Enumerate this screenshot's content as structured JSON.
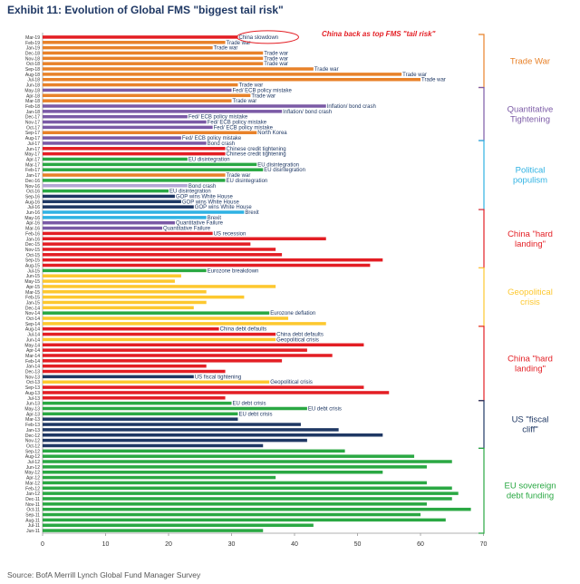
{
  "title": "Exhibit 11: Evolution of Global FMS \"biggest tail risk\"",
  "subtitle": "China back as top FMS \"tail risk\"",
  "source": "Source: BofA Merrill Lynch Global Fund Manager Survey",
  "colors": {
    "trade": "#e8822a",
    "qt": "#7b5aa6",
    "pop": "#2fb2e3",
    "china": "#e31e24",
    "geo": "#fdc82f",
    "fiscal": "#1f3864",
    "eu": "#2aa843"
  },
  "chart_data": {
    "type": "bar",
    "orientation": "horizontal",
    "xlim": [
      0,
      70
    ],
    "xticks": [
      0,
      10,
      20,
      30,
      40,
      50,
      60,
      70
    ],
    "grid": false,
    "groups": [
      {
        "label": "Trade War",
        "color": "#e8822a",
        "from": "Mar-19",
        "to": "Jun-18"
      },
      {
        "label": "Quantitative Tightening",
        "color": "#7b5aa6",
        "from": "May-18",
        "to": "Aug-17"
      },
      {
        "label": "Political populism",
        "color": "#2fb2e3",
        "from": "Jul-17",
        "to": "Jul-16"
      },
      {
        "label": "China \"hard landing\"",
        "color": "#e31e24",
        "from": "Jun-16",
        "to": "Aug-15"
      },
      {
        "label": "Geopolitical crisis",
        "color": "#fdc82f",
        "from": "Jul-15",
        "to": "Sep-14"
      },
      {
        "label": "China \"hard landing\"",
        "color": "#e31e24",
        "from": "Aug-14",
        "to": "Jul-13"
      },
      {
        "label": "US \"fiscal cliff\"",
        "color": "#1f3864",
        "from": "Jun-13",
        "to": "Oct-12"
      },
      {
        "label": "EU sovereign debt funding",
        "color": "#2aa843",
        "from": "Sep-12",
        "to": "Jun-11"
      }
    ],
    "bars": [
      {
        "date": "Mar-19",
        "value": 31,
        "color": "#e31e24",
        "label": "China slowdown"
      },
      {
        "date": "Feb-19",
        "value": 29,
        "color": "#e8822a",
        "label": "Trade war"
      },
      {
        "date": "Jan-19",
        "value": 27,
        "color": "#e8822a",
        "label": "Trade war"
      },
      {
        "date": "Dec-18",
        "value": 35,
        "color": "#e8822a",
        "label": "Trade war"
      },
      {
        "date": "Nov-18",
        "value": 35,
        "color": "#e8822a",
        "label": "Trade war"
      },
      {
        "date": "Oct-18",
        "value": 35,
        "color": "#e8822a",
        "label": "Trade war"
      },
      {
        "date": "Sep-18",
        "value": 43,
        "color": "#e8822a",
        "label": "Trade war"
      },
      {
        "date": "Aug-18",
        "value": 57,
        "color": "#e8822a",
        "label": "Trade war"
      },
      {
        "date": "Jul-18",
        "value": 60,
        "color": "#e8822a",
        "label": "Trade war"
      },
      {
        "date": "Jun-18",
        "value": 31,
        "color": "#e8822a",
        "label": "Trade war"
      },
      {
        "date": "May-18",
        "value": 30,
        "color": "#7b5aa6",
        "label": "Fed/ ECB policy mistake"
      },
      {
        "date": "Apr-18",
        "value": 33,
        "color": "#e8822a",
        "label": "Trade war"
      },
      {
        "date": "Mar-18",
        "value": 30,
        "color": "#e8822a",
        "label": "Trade war"
      },
      {
        "date": "Feb-18",
        "value": 45,
        "color": "#7b5aa6",
        "label": "Inflation/ bond crash"
      },
      {
        "date": "Jan-18",
        "value": 38,
        "color": "#7b5aa6",
        "label": "Inflation/ bond crash"
      },
      {
        "date": "Dec-17",
        "value": 23,
        "color": "#7b5aa6",
        "label": "Fed/ ECB policy mistake"
      },
      {
        "date": "Nov-17",
        "value": 26,
        "color": "#7b5aa6",
        "label": "Fed/ ECB policy mistake"
      },
      {
        "date": "Oct-17",
        "value": 27,
        "color": "#7b5aa6",
        "label": "Fed/ ECB policy mistake"
      },
      {
        "date": "Sep-17",
        "value": 34,
        "color": "#e8822a",
        "label": "North Korea"
      },
      {
        "date": "Aug-17",
        "value": 22,
        "color": "#7b5aa6",
        "label": "Fed/ ECB policy mistake"
      },
      {
        "date": "Jul-17",
        "value": 26,
        "color": "#7b5aa6",
        "label": "Bond crash"
      },
      {
        "date": "Jun-17",
        "value": 29,
        "color": "#e31e24",
        "label": "Chinese credit tightening"
      },
      {
        "date": "May-17",
        "value": 29,
        "color": "#e31e24",
        "label": "Chinese credit tightening"
      },
      {
        "date": "Apr-17",
        "value": 23,
        "color": "#2aa843",
        "label": "EU disintegration"
      },
      {
        "date": "Mar-17",
        "value": 34,
        "color": "#2aa843",
        "label": "EU disintegration"
      },
      {
        "date": "Feb-17",
        "value": 35,
        "color": "#2aa843",
        "label": "EU disintegration"
      },
      {
        "date": "Jan-17",
        "value": 29,
        "color": "#e8822a",
        "label": "Trade war"
      },
      {
        "date": "Dec-16",
        "value": 29,
        "color": "#2aa843",
        "label": "EU disintegration"
      },
      {
        "date": "Nov-16",
        "value": 23,
        "color": "#b4a7d6",
        "label": "Bond crash"
      },
      {
        "date": "Oct-16",
        "value": 20,
        "color": "#2aa843",
        "label": "EU disintegration"
      },
      {
        "date": "Sep-16",
        "value": 21,
        "color": "#1f3864",
        "label": "GOP wins White House"
      },
      {
        "date": "Aug-16",
        "value": 22,
        "color": "#1f3864",
        "label": "GOP wins White House"
      },
      {
        "date": "Jul-16",
        "value": 24,
        "color": "#1f3864",
        "label": "GOP wins White House"
      },
      {
        "date": "Jun-16",
        "value": 32,
        "color": "#2fb2e3",
        "label": "Brexit"
      },
      {
        "date": "May-16",
        "value": 26,
        "color": "#2fb2e3",
        "label": "Brexit"
      },
      {
        "date": "Apr-16",
        "value": 21,
        "color": "#7b5aa6",
        "label": "Quantitative Failure"
      },
      {
        "date": "Mar-16",
        "value": 19,
        "color": "#7b5aa6",
        "label": "Quantitative Failure"
      },
      {
        "date": "Feb-16",
        "value": 27,
        "color": "#e31e24",
        "label": "US recession"
      },
      {
        "date": "Jan-16",
        "value": 45,
        "color": "#e31e24",
        "label": ""
      },
      {
        "date": "Dec-15",
        "value": 33,
        "color": "#e31e24",
        "label": ""
      },
      {
        "date": "Nov-15",
        "value": 37,
        "color": "#e31e24",
        "label": ""
      },
      {
        "date": "Oct-15",
        "value": 38,
        "color": "#e31e24",
        "label": ""
      },
      {
        "date": "Sep-15",
        "value": 54,
        "color": "#e31e24",
        "label": ""
      },
      {
        "date": "Aug-15",
        "value": 52,
        "color": "#e31e24",
        "label": ""
      },
      {
        "date": "Jul-15",
        "value": 26,
        "color": "#2aa843",
        "label": "Eurozone breakdown"
      },
      {
        "date": "Jun-15",
        "value": 22,
        "color": "#fdc82f",
        "label": ""
      },
      {
        "date": "May-15",
        "value": 21,
        "color": "#fdc82f",
        "label": ""
      },
      {
        "date": "Apr-15",
        "value": 37,
        "color": "#fdc82f",
        "label": ""
      },
      {
        "date": "Mar-15",
        "value": 26,
        "color": "#fdc82f",
        "label": ""
      },
      {
        "date": "Feb-15",
        "value": 32,
        "color": "#fdc82f",
        "label": ""
      },
      {
        "date": "Jan-15",
        "value": 26,
        "color": "#fdc82f",
        "label": ""
      },
      {
        "date": "Dec-14",
        "value": 24,
        "color": "#fdc82f",
        "label": ""
      },
      {
        "date": "Nov-14",
        "value": 36,
        "color": "#2aa843",
        "label": "Eurozone deflation"
      },
      {
        "date": "Oct-14",
        "value": 39,
        "color": "#fdc82f",
        "label": ""
      },
      {
        "date": "Sep-14",
        "value": 45,
        "color": "#fdc82f",
        "label": ""
      },
      {
        "date": "Aug-14",
        "value": 28,
        "color": "#e31e24",
        "label": "China debt defaults"
      },
      {
        "date": "Jul-14",
        "value": 37,
        "color": "#e31e24",
        "label": "China debt defaults"
      },
      {
        "date": "Jun-14",
        "value": 37,
        "color": "#fdc82f",
        "label": "Geopolitical crisis"
      },
      {
        "date": "May-14",
        "value": 51,
        "color": "#e31e24",
        "label": ""
      },
      {
        "date": "Apr-14",
        "value": 42,
        "color": "#e31e24",
        "label": ""
      },
      {
        "date": "Mar-14",
        "value": 46,
        "color": "#e31e24",
        "label": ""
      },
      {
        "date": "Feb-14",
        "value": 38,
        "color": "#e31e24",
        "label": ""
      },
      {
        "date": "Jan-14",
        "value": 26,
        "color": "#e31e24",
        "label": ""
      },
      {
        "date": "Dec-13",
        "value": 29,
        "color": "#e31e24",
        "label": ""
      },
      {
        "date": "Nov-13",
        "value": 24,
        "color": "#1f3864",
        "label": "US fiscal tightening"
      },
      {
        "date": "Oct-13",
        "value": 36,
        "color": "#fdc82f",
        "label": "Geopolitical crisis"
      },
      {
        "date": "Sep-13",
        "value": 51,
        "color": "#e31e24",
        "label": ""
      },
      {
        "date": "Aug-13",
        "value": 55,
        "color": "#e31e24",
        "label": ""
      },
      {
        "date": "Jul-13",
        "value": 29,
        "color": "#e31e24",
        "label": ""
      },
      {
        "date": "Jun-13",
        "value": 30,
        "color": "#2aa843",
        "label": "EU debt crisis"
      },
      {
        "date": "May-13",
        "value": 42,
        "color": "#2aa843",
        "label": "EU debt crisis"
      },
      {
        "date": "Apr-13",
        "value": 31,
        "color": "#2aa843",
        "label": "EU debt crisis"
      },
      {
        "date": "Mar-13",
        "value": 31,
        "color": "#1f3864",
        "label": ""
      },
      {
        "date": "Feb-13",
        "value": 41,
        "color": "#1f3864",
        "label": ""
      },
      {
        "date": "Jan-13",
        "value": 47,
        "color": "#1f3864",
        "label": ""
      },
      {
        "date": "Dec-12",
        "value": 54,
        "color": "#1f3864",
        "label": ""
      },
      {
        "date": "Nov-12",
        "value": 42,
        "color": "#1f3864",
        "label": ""
      },
      {
        "date": "Oct-12",
        "value": 35,
        "color": "#1f3864",
        "label": ""
      },
      {
        "date": "Sep-12",
        "value": 48,
        "color": "#2aa843",
        "label": ""
      },
      {
        "date": "Aug-12",
        "value": 59,
        "color": "#2aa843",
        "label": ""
      },
      {
        "date": "Jul-12",
        "value": 65,
        "color": "#2aa843",
        "label": ""
      },
      {
        "date": "Jun-12",
        "value": 61,
        "color": "#2aa843",
        "label": ""
      },
      {
        "date": "May-12",
        "value": 54,
        "color": "#2aa843",
        "label": ""
      },
      {
        "date": "Apr-12",
        "value": 37,
        "color": "#2aa843",
        "label": ""
      },
      {
        "date": "Mar-12",
        "value": 61,
        "color": "#2aa843",
        "label": ""
      },
      {
        "date": "Feb-12",
        "value": 65,
        "color": "#2aa843",
        "label": ""
      },
      {
        "date": "Jan-12",
        "value": 66,
        "color": "#2aa843",
        "label": ""
      },
      {
        "date": "Dec-11",
        "value": 65,
        "color": "#2aa843",
        "label": ""
      },
      {
        "date": "Nov-11",
        "value": 61,
        "color": "#2aa843",
        "label": ""
      },
      {
        "date": "Oct-11",
        "value": 68,
        "color": "#2aa843",
        "label": ""
      },
      {
        "date": "Sep-11",
        "value": 60,
        "color": "#2aa843",
        "label": ""
      },
      {
        "date": "Aug-11",
        "value": 64,
        "color": "#2aa843",
        "label": ""
      },
      {
        "date": "Jul-11",
        "value": 43,
        "color": "#2aa843",
        "label": ""
      },
      {
        "date": "Jun-11",
        "value": 35,
        "color": "#2aa843",
        "label": ""
      }
    ]
  }
}
